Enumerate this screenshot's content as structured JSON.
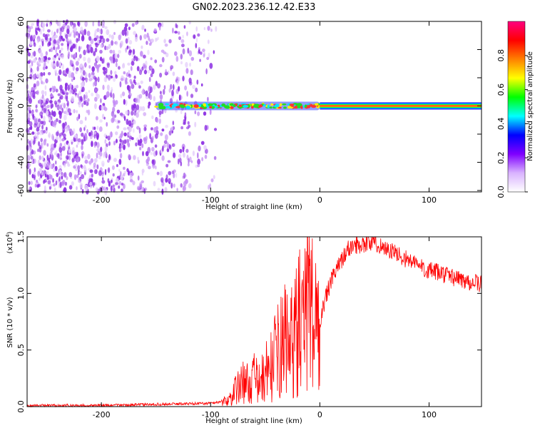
{
  "title": "GN02.2023.236.12.42.E33",
  "chart_data": [
    {
      "type": "heatmap",
      "title": "",
      "xlabel": "Height of straight line (km)",
      "ylabel": "Frequency (Hz)",
      "xlim": [
        -268,
        148
      ],
      "ylim": [
        -61,
        60
      ],
      "xticks": [
        -200,
        -100,
        0,
        100
      ],
      "yticks": [
        -60,
        -40,
        -20,
        0,
        20,
        40,
        60
      ],
      "colorbar": {
        "label": "Normalized spectral amplitude",
        "range": [
          0,
          1
        ],
        "ticks": [
          "0.0",
          "0.2",
          "0.4",
          "0.6",
          "0.8"
        ],
        "tick_values": [
          0.0,
          0.2,
          0.4,
          0.6,
          0.8
        ],
        "colors": [
          "#ffffff",
          "#d9b3ff",
          "#7f00ff",
          "#0000ff",
          "#00ffff",
          "#00ff00",
          "#ffff00",
          "#ff8000",
          "#ff0000",
          "#ff0080"
        ]
      },
      "features": {
        "noise_region_x": [
          -268,
          -95
        ],
        "signal_onset_x": -150,
        "strong_line_start_x": 0,
        "line_frequency_hz": 0
      }
    },
    {
      "type": "line",
      "title": "",
      "xlabel": "Height of straight line (km)",
      "ylabel": "SNR (10 * v/v)",
      "y_multiplier": "(x10",
      "y_multiplier_exp": "4",
      "xlim": [
        -268,
        148
      ],
      "ylim": [
        0,
        1.5
      ],
      "xticks": [
        -200,
        -100,
        0,
        100
      ],
      "yticks": [
        "0.0",
        "0.5",
        "1.0",
        "1.5"
      ],
      "ytick_values": [
        0.0,
        0.5,
        1.0,
        1.5
      ],
      "color": "#ff0000",
      "series": [
        {
          "x": [
            -268,
            -200,
            -150,
            -100,
            -85,
            -80,
            -75,
            -70,
            -65,
            -60,
            -55,
            -50,
            -45,
            -40,
            -35,
            -30,
            -25,
            -20,
            -15,
            -12,
            -10,
            -8,
            -5,
            -3,
            0,
            5,
            10,
            15,
            20,
            25,
            30,
            40,
            50,
            60,
            70,
            80,
            90,
            100,
            110,
            120,
            130,
            140,
            148
          ],
          "values": [
            0.01,
            0.01,
            0.02,
            0.03,
            0.05,
            0.1,
            0.18,
            0.22,
            0.2,
            0.25,
            0.2,
            0.3,
            0.35,
            0.45,
            0.55,
            0.6,
            0.55,
            0.75,
            0.7,
            0.8,
            1.05,
            1.1,
            0.5,
            0.9,
            0.75,
            0.95,
            1.1,
            1.2,
            1.3,
            1.38,
            1.42,
            1.44,
            1.45,
            1.4,
            1.35,
            1.3,
            1.25,
            1.2,
            1.18,
            1.15,
            1.12,
            1.1,
            1.08
          ]
        }
      ]
    }
  ]
}
